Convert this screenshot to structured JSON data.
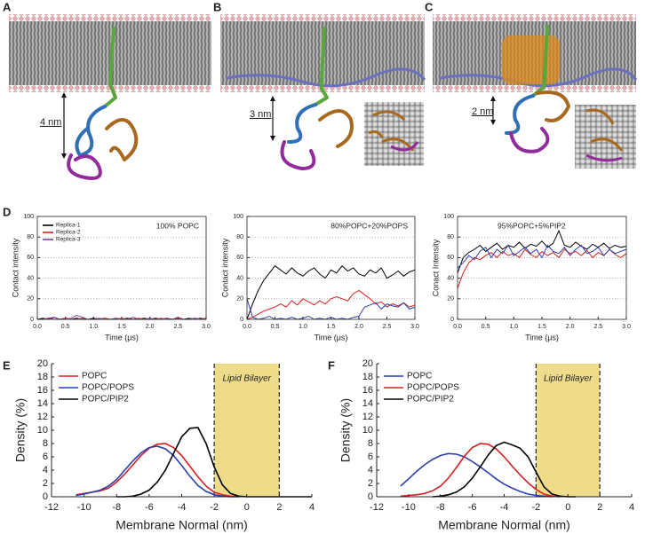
{
  "panel_labels": [
    "A",
    "B",
    "C",
    "D",
    "E",
    "F"
  ],
  "scale_labels": [
    "4 nm",
    "3 nm",
    "2 nm"
  ],
  "chart_data": [
    {
      "type": "line",
      "title": "100% POPC",
      "xlabel": "Time (μs)",
      "ylabel": "Contact intensity",
      "x": [
        0,
        0.1,
        0.2,
        0.3,
        0.4,
        0.5,
        0.6,
        0.7,
        0.8,
        0.9,
        1.0,
        1.1,
        1.2,
        1.3,
        1.4,
        1.5,
        1.6,
        1.7,
        1.8,
        1.9,
        2.0,
        2.1,
        2.2,
        2.3,
        2.4,
        2.5,
        2.6,
        2.7,
        2.8,
        2.9,
        3.0
      ],
      "series": [
        {
          "name": "Replica-1",
          "color": "#000000",
          "values": [
            0,
            1,
            0,
            2,
            0,
            1,
            0,
            1,
            0,
            0,
            1,
            0,
            1,
            0,
            1,
            0,
            1,
            0,
            0,
            1,
            0,
            1,
            0,
            1,
            0,
            1,
            0,
            1,
            0,
            1,
            0
          ]
        },
        {
          "name": "Replica-2",
          "color": "#d62020",
          "values": [
            0,
            0,
            1,
            0,
            0,
            1,
            0,
            0,
            1,
            0,
            0,
            0,
            1,
            0,
            0,
            1,
            0,
            0,
            1,
            0,
            0,
            0,
            1,
            0,
            0,
            1,
            0,
            0,
            1,
            0,
            1
          ]
        },
        {
          "name": "Replica-3",
          "color": "#7a3fb0",
          "values": [
            0,
            0,
            1,
            2,
            0,
            0,
            1,
            4,
            2,
            0,
            0,
            1,
            0,
            0,
            1,
            0,
            0,
            2,
            0,
            0,
            1,
            0,
            0,
            1,
            0,
            2,
            0,
            0,
            1,
            0,
            0
          ]
        }
      ],
      "xlim": [
        0,
        3
      ],
      "ylim": [
        0,
        100
      ],
      "xticks": [
        {
          "value": 0,
          "label": "0.0"
        },
        0.5,
        {
          "value": 1,
          "label": "1.0"
        },
        1.5,
        {
          "value": 2,
          "label": "2.0"
        },
        2.5,
        {
          "value": 3,
          "label": "3.0"
        }
      ],
      "yticks": [
        0,
        20,
        40,
        60,
        80,
        100
      ],
      "grid": true,
      "legend": "upper left"
    },
    {
      "type": "line",
      "title": "80%POPC+20%POPS",
      "xlabel": "Time (μs)",
      "ylabel": "Contact intensity",
      "x": [
        0,
        0.1,
        0.2,
        0.3,
        0.4,
        0.5,
        0.6,
        0.7,
        0.8,
        0.9,
        1.0,
        1.1,
        1.2,
        1.3,
        1.4,
        1.5,
        1.6,
        1.7,
        1.8,
        1.9,
        2.0,
        2.1,
        2.2,
        2.3,
        2.4,
        2.5,
        2.6,
        2.7,
        2.8,
        2.9,
        3.0
      ],
      "series": [
        {
          "name": "Replica-1",
          "color": "#000000",
          "values": [
            0,
            15,
            28,
            38,
            45,
            52,
            48,
            44,
            50,
            45,
            42,
            47,
            50,
            44,
            40,
            48,
            45,
            52,
            47,
            50,
            44,
            42,
            48,
            45,
            50,
            40,
            43,
            47,
            42,
            46,
            48
          ]
        },
        {
          "name": "Replica-2",
          "color": "#d62020",
          "values": [
            0,
            2,
            5,
            8,
            10,
            12,
            15,
            12,
            18,
            14,
            20,
            17,
            14,
            18,
            15,
            20,
            22,
            20,
            18,
            25,
            28,
            24,
            20,
            15,
            17,
            12,
            15,
            13,
            16,
            12,
            14
          ]
        },
        {
          "name": "Replica-3",
          "color": "#2a3fb0",
          "values": [
            20,
            2,
            0,
            1,
            3,
            0,
            1,
            0,
            2,
            0,
            1,
            3,
            0,
            1,
            0,
            2,
            0,
            1,
            0,
            2,
            3,
            12,
            14,
            16,
            10,
            15,
            13,
            12,
            16,
            10,
            12
          ]
        }
      ],
      "xlim": [
        0,
        3
      ],
      "ylim": [
        0,
        100
      ],
      "xticks": [
        {
          "value": 0,
          "label": "0.0"
        },
        0.5,
        {
          "value": 1,
          "label": "1.0"
        },
        1.5,
        {
          "value": 2,
          "label": "2.0"
        },
        2.5,
        {
          "value": 3,
          "label": "3.0"
        }
      ],
      "yticks": [
        0,
        20,
        40,
        60,
        80,
        100
      ],
      "grid": true
    },
    {
      "type": "line",
      "title": "95%POPC+5%PIP2",
      "xlabel": "Time (μs)",
      "ylabel": "Conact Intensity",
      "x": [
        0,
        0.1,
        0.2,
        0.3,
        0.4,
        0.5,
        0.6,
        0.7,
        0.8,
        0.9,
        1.0,
        1.1,
        1.2,
        1.3,
        1.4,
        1.5,
        1.6,
        1.7,
        1.8,
        1.9,
        2.0,
        2.1,
        2.2,
        2.3,
        2.4,
        2.5,
        2.6,
        2.7,
        2.8,
        2.9,
        3.0
      ],
      "series": [
        {
          "name": "Replica-1",
          "color": "#000000",
          "values": [
            45,
            60,
            65,
            68,
            72,
            66,
            70,
            74,
            68,
            72,
            70,
            75,
            69,
            73,
            71,
            76,
            70,
            74,
            86,
            72,
            70,
            75,
            71,
            68,
            73,
            70,
            74,
            69,
            72,
            70,
            71
          ]
        },
        {
          "name": "Replica-2",
          "color": "#d62020",
          "values": [
            30,
            45,
            55,
            60,
            58,
            62,
            65,
            60,
            66,
            62,
            64,
            60,
            68,
            63,
            60,
            66,
            62,
            65,
            60,
            68,
            64,
            66,
            62,
            67,
            60,
            65,
            62,
            68,
            63,
            60,
            64
          ]
        },
        {
          "name": "Replica-3",
          "color": "#2a3fb0",
          "values": [
            50,
            55,
            62,
            58,
            66,
            70,
            60,
            68,
            64,
            72,
            62,
            66,
            70,
            64,
            68,
            60,
            72,
            66,
            64,
            70,
            62,
            68,
            72,
            64,
            66,
            70,
            62,
            68,
            64,
            66,
            68
          ]
        }
      ],
      "xlim": [
        0,
        3
      ],
      "ylim": [
        0,
        100
      ],
      "xticks": [
        {
          "value": 0,
          "label": "0.0"
        },
        0.5,
        {
          "value": 1,
          "label": "1.0"
        },
        1.5,
        {
          "value": 2,
          "label": "2.0"
        },
        2.5,
        {
          "value": 3,
          "label": "3.0"
        }
      ],
      "yticks": [
        0,
        20,
        40,
        60,
        80,
        100
      ],
      "grid": true
    },
    {
      "type": "line",
      "xlabel": "Membrane Normal (nm)",
      "ylabel": "Density (%)",
      "x": [
        -10.5,
        -10,
        -9.5,
        -9,
        -8.5,
        -8,
        -7.5,
        -7,
        -6.5,
        -6,
        -5.5,
        -5,
        -4.5,
        -4,
        -3.5,
        -3,
        -2.5,
        -2,
        -1.5,
        -1,
        -0.5,
        0,
        0.5,
        1,
        1.5,
        2,
        2.5,
        3,
        3.5,
        4
      ],
      "series": [
        {
          "name": "POPC",
          "color": "#d62020",
          "values": [
            0.3,
            0.5,
            0.7,
            0.9,
            1.3,
            2.2,
            3.4,
            4.8,
            6.2,
            7.3,
            7.9,
            8.0,
            7.4,
            6.2,
            4.6,
            3.0,
            1.6,
            0.7,
            0.3,
            0.1,
            0,
            null,
            null,
            null,
            null,
            null,
            null,
            null,
            null,
            null
          ]
        },
        {
          "name": "POPC/POPS",
          "color": "#2a3fb0",
          "values": [
            0.2,
            0.4,
            0.7,
            1.0,
            1.6,
            2.6,
            4.0,
            5.4,
            6.6,
            7.4,
            7.6,
            7.2,
            6.2,
            4.7,
            3.1,
            1.7,
            0.8,
            0.3,
            0.1,
            0,
            0,
            null,
            null,
            null,
            null,
            null,
            null,
            null,
            null,
            null
          ]
        },
        {
          "name": "POPC/PIP2",
          "color": "#000000",
          "values": [
            null,
            null,
            null,
            null,
            null,
            0,
            0,
            0.1,
            0.4,
            1.0,
            2.2,
            4.0,
            6.5,
            9.0,
            10.3,
            10.4,
            8.0,
            4.5,
            1.8,
            0.5,
            0.1,
            0,
            0,
            0,
            0,
            0,
            0,
            0,
            0,
            0
          ]
        }
      ],
      "xlim": [
        -12,
        4
      ],
      "ylim": [
        0,
        20
      ],
      "xticks": [
        -12,
        -10,
        -8,
        -6,
        -4,
        -2,
        0,
        2,
        4
      ],
      "yticks": [
        0,
        2,
        4,
        6,
        8,
        10,
        12,
        14,
        16,
        18,
        20
      ],
      "region": {
        "label": "Lipid Bilayer",
        "range": [
          -2,
          2
        ],
        "color": "#efdc8a"
      },
      "legend": "upper left"
    },
    {
      "type": "line",
      "xlabel": "Membrane Normal (nm)",
      "ylabel": "Density (%)",
      "x": [
        -10.5,
        -10,
        -9.5,
        -9,
        -8.5,
        -8,
        -7.5,
        -7,
        -6.5,
        -6,
        -5.5,
        -5,
        -4.5,
        -4,
        -3.5,
        -3,
        -2.5,
        -2,
        -1.5,
        -1,
        -0.5,
        0,
        0.5,
        1,
        1.5,
        2,
        2.5,
        3,
        3.5,
        4
      ],
      "series": [
        {
          "name": "POPC",
          "color": "#2a3fb0",
          "values": [
            1.6,
            2.7,
            3.8,
            4.8,
            5.6,
            6.2,
            6.5,
            6.4,
            6.0,
            5.3,
            4.5,
            3.6,
            2.7,
            1.9,
            1.3,
            0.8,
            0.4,
            0.2,
            0.1,
            0,
            null,
            null,
            null,
            null,
            null,
            null,
            null,
            null,
            null,
            null
          ]
        },
        {
          "name": "POPC/POPS",
          "color": "#d62020",
          "values": [
            0.1,
            0.2,
            0.3,
            0.5,
            0.9,
            1.6,
            2.8,
            4.4,
            6.1,
            7.4,
            8.0,
            7.9,
            7.2,
            6.0,
            4.6,
            3.3,
            2.1,
            1.1,
            0.4,
            0.1,
            0,
            null,
            null,
            null,
            null,
            null,
            null,
            null,
            null,
            null
          ]
        },
        {
          "name": "POPC/PIP2",
          "color": "#000000",
          "values": [
            null,
            null,
            null,
            null,
            0,
            0.1,
            0.3,
            0.7,
            1.5,
            2.8,
            4.5,
            6.3,
            7.7,
            8.2,
            7.8,
            7.3,
            6.0,
            3.7,
            1.5,
            0.4,
            0.1,
            0,
            0,
            null,
            null,
            null,
            null,
            null,
            null,
            null
          ]
        }
      ],
      "xlim": [
        -12,
        4
      ],
      "ylim": [
        0,
        20
      ],
      "xticks": [
        -12,
        -10,
        -8,
        -6,
        -4,
        -2,
        0,
        2,
        4
      ],
      "yticks": [
        0,
        2,
        4,
        6,
        8,
        10,
        12,
        14,
        16,
        18,
        20
      ],
      "region": {
        "label": "Lipid Bilayer",
        "range": [
          -2,
          2
        ],
        "color": "#efdc8a"
      },
      "legend": "upper left"
    }
  ]
}
